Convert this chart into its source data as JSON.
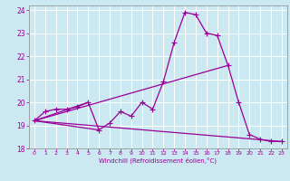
{
  "xlabel": "Windchill (Refroidissement éolien,°C)",
  "background_color": "#cce8f0",
  "grid_color": "#ffffff",
  "line_color": "#990099",
  "xlim": [
    -0.5,
    23.5
  ],
  "ylim": [
    18,
    24.2
  ],
  "yticks": [
    18,
    19,
    20,
    21,
    22,
    23,
    24
  ],
  "xticks": [
    0,
    1,
    2,
    3,
    4,
    5,
    6,
    7,
    8,
    9,
    10,
    11,
    12,
    13,
    14,
    15,
    16,
    17,
    18,
    19,
    20,
    21,
    22,
    23
  ],
  "main_series": {
    "x": [
      0,
      1,
      2,
      3,
      4,
      5,
      6,
      7,
      8,
      9,
      10,
      11,
      12,
      13,
      14,
      15,
      16,
      17,
      18,
      19,
      20,
      21,
      22,
      23
    ],
    "y": [
      19.2,
      19.6,
      19.7,
      19.7,
      19.8,
      20.0,
      18.8,
      19.1,
      19.6,
      19.4,
      20.0,
      19.7,
      20.9,
      22.6,
      23.9,
      23.8,
      23.0,
      22.9,
      21.6,
      20.0,
      18.6,
      18.4,
      18.3,
      18.3
    ]
  },
  "line_rise": {
    "x": [
      0,
      18
    ],
    "y": [
      19.2,
      21.6
    ]
  },
  "line_fall": {
    "x": [
      0,
      23
    ],
    "y": [
      19.2,
      18.3
    ]
  },
  "line_fan1": {
    "x": [
      0,
      5
    ],
    "y": [
      19.2,
      20.0
    ]
  },
  "line_fan2": {
    "x": [
      0,
      6
    ],
    "y": [
      19.2,
      18.8
    ]
  }
}
